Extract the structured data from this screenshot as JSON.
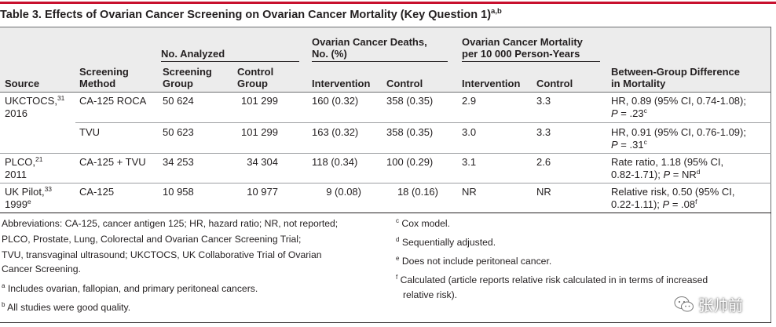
{
  "table": {
    "title": "Table 3. Effects of Ovarian Cancer Screening on Ovarian Cancer Mortality (Key Question 1)",
    "title_sup": "a,b",
    "group_headers": {
      "analyzed": "No. Analyzed",
      "deaths_l1": "Ovarian Cancer Deaths,",
      "deaths_l2": "No. (%)",
      "mortality_l1": "Ovarian Cancer Mortality",
      "mortality_l2": "per 10 000 Person-Years"
    },
    "columns": {
      "source": "Source",
      "method_l1": "Screening",
      "method_l2": "Method",
      "screening_group_l1": "Screening",
      "screening_group_l2": "Group",
      "control_group_l1": "Control",
      "control_group_l2": "Group",
      "deaths_intervention": "Intervention",
      "deaths_control": "Control",
      "mort_intervention": "Intervention",
      "mort_control": "Control",
      "difference_l1": "Between-Group Difference",
      "difference_l2": "in Mortality"
    },
    "rows": [
      {
        "source_l1": "UKCTOCS,",
        "source_ref": "31",
        "source_l2": "2016",
        "method": "CA-125 ROCA",
        "screening_n": "50 624",
        "control_n": "101 299",
        "deaths_int": "160 (0.32)",
        "deaths_ctrl": "358 (0.35)",
        "mort_int": "2.9",
        "mort_ctrl": "3.3",
        "diff_l1": "HR, 0.89 (95% CI, 0.74-1.08);",
        "diff_p": "P",
        "diff_l2": " = .23",
        "diff_sup": "c"
      },
      {
        "method": "TVU",
        "screening_n": "50 623",
        "control_n": "101 299",
        "deaths_int": "163 (0.32)",
        "deaths_ctrl": "358 (0.35)",
        "mort_int": "3.0",
        "mort_ctrl": "3.3",
        "diff_l1": "HR, 0.91 (95% CI, 0.76-1.09);",
        "diff_p": "P",
        "diff_l2": " = .31",
        "diff_sup": "c"
      },
      {
        "source_l1": "PLCO,",
        "source_ref": "21",
        "source_l2": "2011",
        "method": "CA-125 + TVU",
        "screening_n": "34 253",
        "control_n": "34 304",
        "deaths_int": "118 (0.34)",
        "deaths_ctrl": "100 (0.29)",
        "mort_int": "3.1",
        "mort_ctrl": "2.6",
        "diff_l1": "Rate ratio, 1.18 (95% CI,",
        "diff_l2a": "0.82-1.71); ",
        "diff_p": "P",
        "diff_l2": " = NR",
        "diff_sup": "d"
      },
      {
        "source_l1": "UK Pilot,",
        "source_ref": "33",
        "source_l2": "1999",
        "source_sup": "e",
        "method": "CA-125",
        "screening_n": "10 958",
        "control_n": "10 977",
        "deaths_int": "9 (0.08)",
        "deaths_ctrl": "18 (0.16)",
        "mort_int": "NR",
        "mort_ctrl": "NR",
        "diff_l1": "Relative risk, 0.50 (95% CI,",
        "diff_l2a": "0.22-1.11); ",
        "diff_p": "P",
        "diff_l2": " = .08",
        "diff_sup": "f"
      }
    ]
  },
  "footnotes": {
    "abbrev_1": "Abbreviations: CA-125, cancer antigen 125; HR, hazard ratio; NR, not reported;",
    "abbrev_2": "PLCO, Prostate, Lung, Colorectal and Ovarian Cancer Screening Trial;",
    "abbrev_3": "TVU, transvaginal ultrasound; UKCTOCS, UK Collaborative Trial of Ovarian",
    "abbrev_4": "Cancer Screening.",
    "a_mark": "a",
    "a_text": " Includes ovarian, fallopian, and primary peritoneal cancers.",
    "b_mark": "b",
    "b_text": " All studies were good quality.",
    "c_mark": "c",
    "c_text": " Cox model.",
    "d_mark": "d",
    "d_text": " Sequentially adjusted.",
    "e_mark": "e",
    "e_text": " Does not include peritoneal cancer.",
    "f_mark": "f",
    "f_text_1": " Calculated (article reports relative risk calculated in in terms of increased",
    "f_text_2": "relative risk)."
  },
  "watermark": {
    "icon": "wechat-icon",
    "text": "张帅前"
  },
  "colors": {
    "accent_red": "#c8102e",
    "header_bg": "#ececec"
  }
}
